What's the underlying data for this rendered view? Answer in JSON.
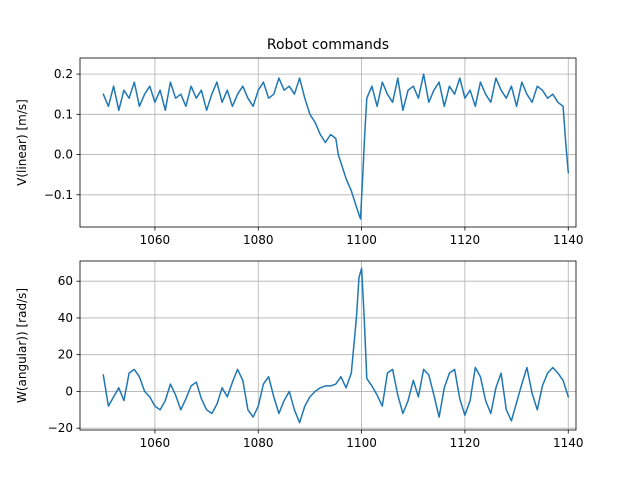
{
  "figure": {
    "title": "Robot commands",
    "line_color": "#1f77b4",
    "grid_color": "#b0b0b0"
  },
  "chart_data": [
    {
      "type": "line",
      "title": "Robot commands",
      "xlabel": "",
      "ylabel": "V(linear) [m/s]",
      "xlim": [
        1045.5,
        1141.5
      ],
      "ylim": [
        -0.18,
        0.24
      ],
      "xticks": [
        1060,
        1080,
        1100,
        1120,
        1140
      ],
      "xtick_labels": [
        "1060",
        "1080",
        "1100",
        "1120",
        "1140"
      ],
      "yticks": [
        -0.1,
        0.0,
        0.1,
        0.2
      ],
      "ytick_labels": [
        "−0.1",
        "0.0",
        "0.1",
        "0.2"
      ],
      "grid": true,
      "series": [
        {
          "x": [
            1050,
            1051,
            1052,
            1053,
            1054,
            1055,
            1056,
            1057,
            1058,
            1059,
            1060,
            1061,
            1062,
            1063,
            1064,
            1065,
            1066,
            1067,
            1068,
            1069,
            1070,
            1071,
            1072,
            1073,
            1074,
            1075,
            1076,
            1077,
            1078,
            1079,
            1080,
            1081,
            1082,
            1083,
            1084,
            1085,
            1086,
            1087,
            1088,
            1089,
            1090,
            1091,
            1092,
            1093,
            1094,
            1095,
            1095.5,
            1096,
            1097,
            1098,
            1099,
            1099.8,
            1100.2,
            1100.6,
            1101,
            1102,
            1103,
            1104,
            1105,
            1106,
            1107,
            1108,
            1109,
            1110,
            1111,
            1112,
            1113,
            1114,
            1115,
            1116,
            1117,
            1118,
            1119,
            1120,
            1121,
            1122,
            1123,
            1124,
            1125,
            1126,
            1127,
            1128,
            1129,
            1130,
            1131,
            1132,
            1133,
            1134,
            1135,
            1136,
            1137,
            1138,
            1139,
            1139.5,
            1140
          ],
          "y": [
            0.15,
            0.12,
            0.17,
            0.11,
            0.16,
            0.14,
            0.18,
            0.12,
            0.15,
            0.17,
            0.13,
            0.16,
            0.11,
            0.18,
            0.14,
            0.15,
            0.12,
            0.17,
            0.14,
            0.16,
            0.11,
            0.15,
            0.18,
            0.13,
            0.16,
            0.12,
            0.15,
            0.17,
            0.14,
            0.12,
            0.16,
            0.18,
            0.14,
            0.15,
            0.19,
            0.16,
            0.17,
            0.15,
            0.19,
            0.14,
            0.1,
            0.08,
            0.05,
            0.03,
            0.05,
            0.04,
            0.0,
            -0.02,
            -0.06,
            -0.09,
            -0.13,
            -0.16,
            -0.06,
            0.05,
            0.14,
            0.17,
            0.12,
            0.18,
            0.15,
            0.13,
            0.19,
            0.11,
            0.16,
            0.17,
            0.14,
            0.2,
            0.13,
            0.16,
            0.18,
            0.12,
            0.17,
            0.15,
            0.19,
            0.14,
            0.16,
            0.12,
            0.18,
            0.15,
            0.13,
            0.19,
            0.16,
            0.14,
            0.17,
            0.12,
            0.18,
            0.15,
            0.13,
            0.17,
            0.16,
            0.14,
            0.15,
            0.13,
            0.12,
            0.03,
            -0.045
          ]
        }
      ]
    },
    {
      "type": "line",
      "title": "",
      "xlabel": "",
      "ylabel": "W(angular)) [rad/s]",
      "xlim": [
        1045.5,
        1141.5
      ],
      "ylim": [
        -21,
        71
      ],
      "xticks": [
        1060,
        1080,
        1100,
        1120,
        1140
      ],
      "xtick_labels": [
        "1060",
        "1080",
        "1100",
        "1120",
        "1140"
      ],
      "yticks": [
        -20,
        0,
        20,
        40,
        60
      ],
      "ytick_labels": [
        "−20",
        "0",
        "20",
        "40",
        "60"
      ],
      "grid": true,
      "series": [
        {
          "x": [
            1050,
            1051,
            1052,
            1053,
            1054,
            1055,
            1056,
            1057,
            1058,
            1059,
            1060,
            1061,
            1062,
            1063,
            1064,
            1065,
            1066,
            1067,
            1068,
            1069,
            1070,
            1071,
            1072,
            1073,
            1074,
            1075,
            1076,
            1077,
            1078,
            1079,
            1080,
            1081,
            1082,
            1083,
            1084,
            1085,
            1086,
            1087,
            1088,
            1089,
            1090,
            1091,
            1092,
            1093,
            1094,
            1095,
            1096,
            1097,
            1098,
            1099,
            1099.5,
            1100,
            1100.5,
            1101,
            1102,
            1103,
            1104,
            1105,
            1106,
            1107,
            1108,
            1109,
            1110,
            1111,
            1112,
            1113,
            1114,
            1115,
            1116,
            1117,
            1118,
            1119,
            1120,
            1121,
            1122,
            1123,
            1124,
            1125,
            1126,
            1127,
            1128,
            1129,
            1130,
            1131,
            1132,
            1133,
            1134,
            1135,
            1136,
            1137,
            1138,
            1139,
            1140
          ],
          "y": [
            9,
            -8,
            -3,
            2,
            -5,
            10,
            12,
            8,
            0,
            -3,
            -8,
            -10,
            -5,
            4,
            -2,
            -10,
            -4,
            3,
            5,
            -4,
            -10,
            -12,
            -7,
            2,
            -3,
            5,
            12,
            6,
            -10,
            -14,
            -8,
            4,
            8,
            -3,
            -12,
            -5,
            0,
            -10,
            -17,
            -8,
            -3,
            0,
            2,
            3,
            3,
            4,
            8,
            2,
            10,
            40,
            62,
            67,
            40,
            7,
            3,
            -2,
            -8,
            10,
            12,
            -2,
            -12,
            -5,
            6,
            -3,
            12,
            9,
            -2,
            -14,
            2,
            10,
            12,
            -4,
            -13,
            -5,
            13,
            8,
            -5,
            -12,
            2,
            10,
            -10,
            -16,
            -6,
            4,
            13,
            -1,
            -10,
            3,
            10,
            13,
            10,
            6,
            -3
          ]
        }
      ]
    }
  ]
}
